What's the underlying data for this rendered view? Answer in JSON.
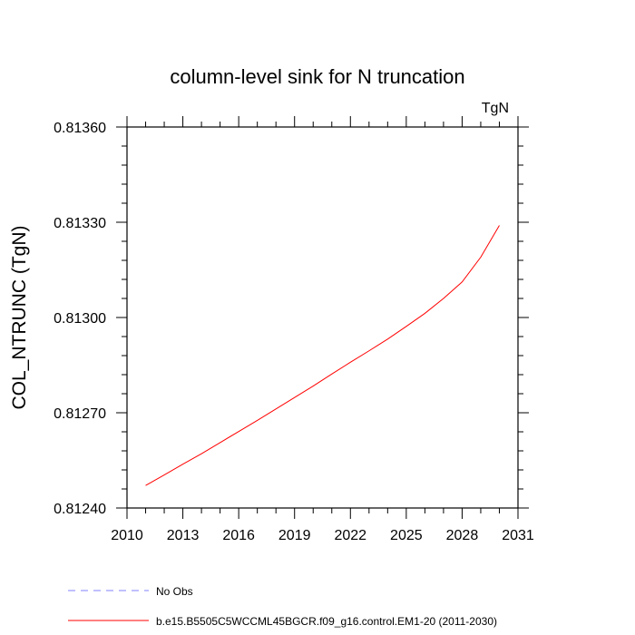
{
  "chart_data": {
    "type": "line",
    "title": "column-level sink for N truncation",
    "units_label": "TgN",
    "xlabel": "",
    "ylabel": "COL_NTRUNC  (TgN)",
    "xlim": [
      2010,
      2031
    ],
    "ylim": [
      0.8124,
      0.8136
    ],
    "x_ticks": [
      2010,
      2013,
      2016,
      2019,
      2022,
      2025,
      2028,
      2031
    ],
    "x_tick_labels": [
      "2010",
      "2013",
      "2016",
      "2019",
      "2022",
      "2025",
      "2028",
      "2031"
    ],
    "y_ticks": [
      0.8124,
      0.8127,
      0.813,
      0.8133,
      0.8136
    ],
    "y_tick_labels": [
      "0.81240",
      "0.81270",
      "0.81300",
      "0.81330",
      "0.81360"
    ],
    "x_minor_step": 1,
    "y_minor_step": 6e-05,
    "grid": false,
    "legend_position": "bottom-left",
    "series": [
      {
        "name": "No Obs",
        "color": "#8080ff",
        "dash": true,
        "x": [],
        "y": []
      },
      {
        "name": "b.e15.B5505C5WCCML45BGCR.f09_g16.control.EM1-20 (2011-2030)",
        "color": "#ff0000",
        "dash": false,
        "x": [
          2011,
          2012,
          2013,
          2014,
          2015,
          2016,
          2017,
          2018,
          2019,
          2020,
          2021,
          2022,
          2023,
          2024,
          2025,
          2026,
          2027,
          2028,
          2029,
          2030
        ],
        "y": [
          0.812471,
          0.812504,
          0.812538,
          0.812571,
          0.812606,
          0.812641,
          0.812676,
          0.812712,
          0.812748,
          0.812784,
          0.812822,
          0.812859,
          0.812895,
          0.812932,
          0.812972,
          0.813013,
          0.81306,
          0.813112,
          0.81319,
          0.81329
        ]
      }
    ]
  }
}
